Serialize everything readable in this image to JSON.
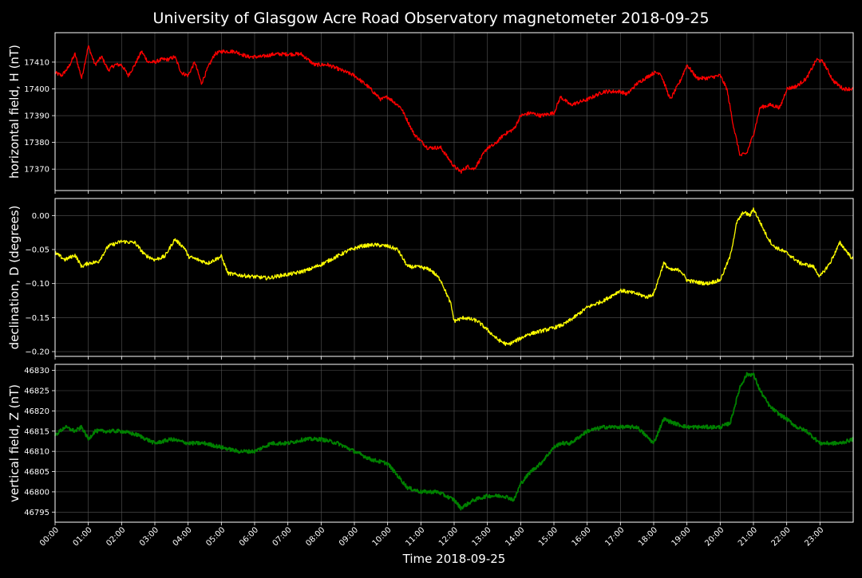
{
  "chart_data": {
    "type": "line",
    "title": "University of Glasgow Acre Road Observatory magnetometer 2018-09-25",
    "xlabel": "Time 2018-09-25",
    "x_unit": "hour of day",
    "x_tick_labels": [
      "00:00",
      "01:00",
      "02:00",
      "03:00",
      "04:00",
      "05:00",
      "06:00",
      "07:00",
      "08:00",
      "09:00",
      "10:00",
      "11:00",
      "12:00",
      "13:00",
      "14:00",
      "15:00",
      "16:00",
      "17:00",
      "18:00",
      "19:00",
      "20:00",
      "21:00",
      "22:00",
      "23:00"
    ],
    "xlim": [
      0,
      24
    ],
    "grid": true,
    "background": "#000000",
    "grid_color": "#555555",
    "panels": [
      {
        "ylabel": "horizontal field, H (nT)",
        "color": "#ff0000",
        "ylim": [
          17362,
          17421
        ],
        "yticks": [
          17370,
          17380,
          17390,
          17400,
          17410
        ],
        "ytick_labels": [
          "17370",
          "17380",
          "17390",
          "17400",
          "17410"
        ],
        "x": [
          0,
          0.2,
          0.4,
          0.6,
          0.8,
          1.0,
          1.2,
          1.4,
          1.6,
          1.8,
          2.0,
          2.2,
          2.4,
          2.6,
          2.8,
          3.0,
          3.2,
          3.4,
          3.6,
          3.8,
          4.0,
          4.2,
          4.4,
          4.6,
          4.8,
          5.0,
          5.4,
          5.8,
          6.2,
          6.6,
          7.0,
          7.4,
          7.8,
          8.2,
          8.6,
          9.0,
          9.4,
          9.8,
          10.0,
          10.4,
          10.8,
          11.2,
          11.6,
          12.0,
          12.2,
          12.4,
          12.6,
          12.8,
          13.0,
          13.2,
          13.5,
          13.8,
          14.0,
          14.3,
          14.6,
          15.0,
          15.2,
          15.5,
          16.0,
          16.5,
          17.0,
          17.2,
          17.5,
          18.0,
          18.2,
          18.5,
          18.8,
          19.0,
          19.3,
          19.6,
          20.0,
          20.2,
          20.4,
          20.6,
          20.8,
          21.0,
          21.2,
          21.5,
          21.8,
          22.0,
          22.3,
          22.6,
          22.9,
          23.1,
          23.4,
          23.7,
          24.0
        ],
        "values": [
          17406,
          17405,
          17408,
          17413,
          17404,
          17416,
          17409,
          17412,
          17407,
          17409,
          17409,
          17405,
          17409,
          17414,
          17410,
          17410,
          17411,
          17411,
          17412,
          17406,
          17405,
          17410,
          17402,
          17408,
          17413,
          17414,
          17414,
          17412,
          17412,
          17413,
          17413,
          17413,
          17409,
          17409,
          17407,
          17405,
          17401,
          17396,
          17397,
          17393,
          17383,
          17378,
          17378,
          17371,
          17369,
          17371,
          17370,
          17374,
          17378,
          17379,
          17383,
          17385,
          17390,
          17391,
          17390,
          17391,
          17397,
          17394,
          17396,
          17399,
          17399,
          17398,
          17402,
          17406,
          17406,
          17396,
          17403,
          17409,
          17404,
          17404,
          17405,
          17400,
          17386,
          17375,
          17376,
          17383,
          17393,
          17394,
          17393,
          17400,
          17401,
          17404,
          17411,
          17410,
          17403,
          17400,
          17400
        ]
      },
      {
        "ylabel": "declination, D (degrees)",
        "color": "#ffff00",
        "ylim": [
          -0.207,
          0.025
        ],
        "yticks": [
          -0.2,
          -0.15,
          -0.1,
          -0.05,
          0.0
        ],
        "ytick_labels": [
          "−0.20",
          "−0.15",
          "−0.10",
          "−0.05",
          "0.00"
        ],
        "x": [
          0,
          0.3,
          0.6,
          0.8,
          1.0,
          1.3,
          1.6,
          2.0,
          2.4,
          2.7,
          3.0,
          3.3,
          3.6,
          3.9,
          4.0,
          4.3,
          4.6,
          5.0,
          5.2,
          5.6,
          6.0,
          6.4,
          6.8,
          7.2,
          7.6,
          8.0,
          8.4,
          8.8,
          9.2,
          9.6,
          10.0,
          10.3,
          10.6,
          11.0,
          11.3,
          11.6,
          11.9,
          12.0,
          12.3,
          12.7,
          13.0,
          13.3,
          13.6,
          13.9,
          14.2,
          14.6,
          15.0,
          15.3,
          15.6,
          16.0,
          16.5,
          17.0,
          17.5,
          17.8,
          18.0,
          18.3,
          18.5,
          18.8,
          19.0,
          19.3,
          19.6,
          20.0,
          20.3,
          20.5,
          20.7,
          20.9,
          21.0,
          21.2,
          21.4,
          21.6,
          22.0,
          22.4,
          22.8,
          23.0,
          23.3,
          23.6,
          24.0
        ],
        "values": [
          -0.055,
          -0.065,
          -0.058,
          -0.075,
          -0.07,
          -0.068,
          -0.045,
          -0.038,
          -0.04,
          -0.058,
          -0.065,
          -0.06,
          -0.035,
          -0.048,
          -0.06,
          -0.065,
          -0.07,
          -0.06,
          -0.085,
          -0.088,
          -0.09,
          -0.092,
          -0.088,
          -0.085,
          -0.08,
          -0.072,
          -0.062,
          -0.052,
          -0.045,
          -0.043,
          -0.045,
          -0.05,
          -0.075,
          -0.076,
          -0.08,
          -0.095,
          -0.13,
          -0.155,
          -0.15,
          -0.155,
          -0.168,
          -0.182,
          -0.19,
          -0.183,
          -0.175,
          -0.17,
          -0.165,
          -0.16,
          -0.15,
          -0.135,
          -0.125,
          -0.11,
          -0.115,
          -0.12,
          -0.115,
          -0.07,
          -0.08,
          -0.08,
          -0.095,
          -0.098,
          -0.1,
          -0.095,
          -0.06,
          -0.01,
          0.005,
          0.0,
          0.01,
          -0.01,
          -0.03,
          -0.045,
          -0.055,
          -0.07,
          -0.075,
          -0.09,
          -0.07,
          -0.04,
          -0.065
        ]
      },
      {
        "ylabel": "vertical field, Z (nT)",
        "color": "#008000",
        "ylim": [
          46792.5,
          46831.5
        ],
        "yticks": [
          46795,
          46800,
          46805,
          46810,
          46815,
          46820,
          46825,
          46830
        ],
        "ytick_labels": [
          "46795",
          "46800",
          "46805",
          "46810",
          "46815",
          "46820",
          "46825",
          "46830"
        ],
        "x": [
          0,
          0.3,
          0.6,
          0.8,
          1.0,
          1.2,
          1.5,
          2.0,
          2.5,
          3.0,
          3.5,
          4.0,
          4.5,
          5.0,
          5.5,
          6.0,
          6.5,
          7.0,
          7.5,
          8.0,
          8.5,
          9.0,
          9.5,
          10.0,
          10.3,
          10.6,
          11.0,
          11.5,
          12.0,
          12.2,
          12.4,
          12.6,
          13.0,
          13.5,
          13.8,
          14.0,
          14.3,
          14.6,
          15.0,
          15.2,
          15.5,
          16.0,
          16.5,
          17.0,
          17.5,
          18.0,
          18.3,
          18.6,
          19.0,
          19.3,
          19.6,
          20.0,
          20.3,
          20.6,
          20.8,
          21.0,
          21.2,
          21.5,
          21.8,
          22.0,
          22.3,
          22.6,
          23.0,
          23.3,
          23.6,
          24.0
        ],
        "values": [
          46814,
          46816,
          46815,
          46816,
          46813,
          46815,
          46815,
          46815,
          46814,
          46812,
          46813,
          46812,
          46812,
          46811,
          46810,
          46810,
          46812,
          46812,
          46813,
          46813,
          46812,
          46810,
          46808,
          46807,
          46804,
          46801,
          46800,
          46800,
          46798,
          46796,
          46797,
          46798,
          46799,
          46799,
          46798,
          46802,
          46805,
          46807,
          46811,
          46812,
          46812,
          46815,
          46816,
          46816,
          46816,
          46812,
          46818,
          46817,
          46816,
          46816,
          46816,
          46816,
          46817,
          46826,
          46829,
          46829,
          46825,
          46821,
          46819,
          46818,
          46816,
          46815,
          46812,
          46812,
          46812,
          46813
        ]
      }
    ]
  }
}
